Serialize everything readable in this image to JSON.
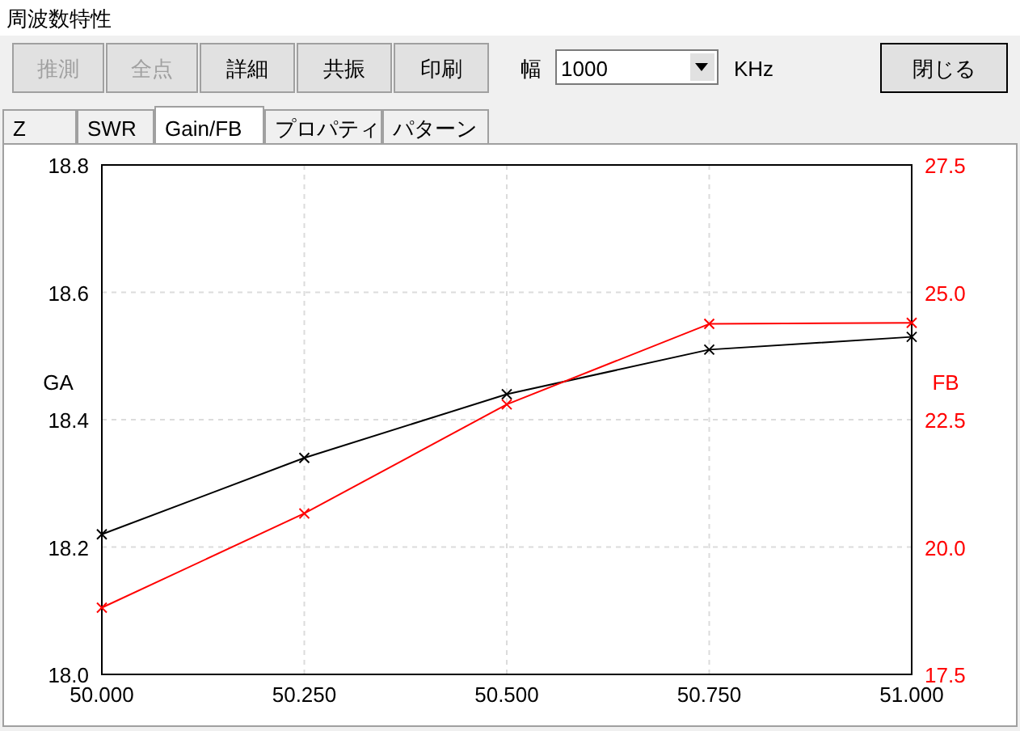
{
  "chart_data": {
    "type": "line",
    "title": "周波数特性",
    "annotations": [
      "推測",
      "全点",
      "詳細",
      "共振",
      "印刷",
      "幅",
      "1000",
      "KHz",
      "閉じる",
      "Z",
      "SWR",
      "Gain/FB",
      "プロパティ",
      "パターン"
    ],
    "x": [
      50.0,
      50.25,
      50.5,
      50.75,
      51.0
    ],
    "series": [
      {
        "color": "#000000",
        "values": [
          18.22,
          18.34,
          18.44,
          18.51,
          18.53
        ]
      },
      {
        "color": "#ff0000",
        "axis": "y2",
        "values": [
          18.81,
          20.66,
          22.8,
          24.38,
          24.4
        ]
      }
    ],
    "ylabel": "GA",
    "y2label": "FB",
    "xlim": [
      50.0,
      51.0
    ],
    "xticks": [
      {
        "value": 50.0,
        "label": "50.000"
      },
      {
        "value": 50.25,
        "label": "50.250"
      },
      {
        "value": 50.5,
        "label": "50.500"
      },
      {
        "value": 50.75,
        "label": "50.750"
      },
      {
        "value": 51.0,
        "label": "51.000"
      }
    ],
    "ylim": [
      18.0,
      18.8
    ],
    "yticks": [
      {
        "value": 18.0,
        "label": "18.0"
      },
      18.2,
      18.4,
      18.6,
      18.8
    ],
    "y2lim": [
      17.5,
      27.5
    ],
    "y2ticks": [
      17.5,
      {
        "value": 20.0,
        "label": "20.0"
      },
      22.5,
      {
        "value": 25.0,
        "label": "25.0"
      },
      27.5
    ],
    "grid": true,
    "marker": "cross",
    "line_style": "solid",
    "legend": false
  }
}
